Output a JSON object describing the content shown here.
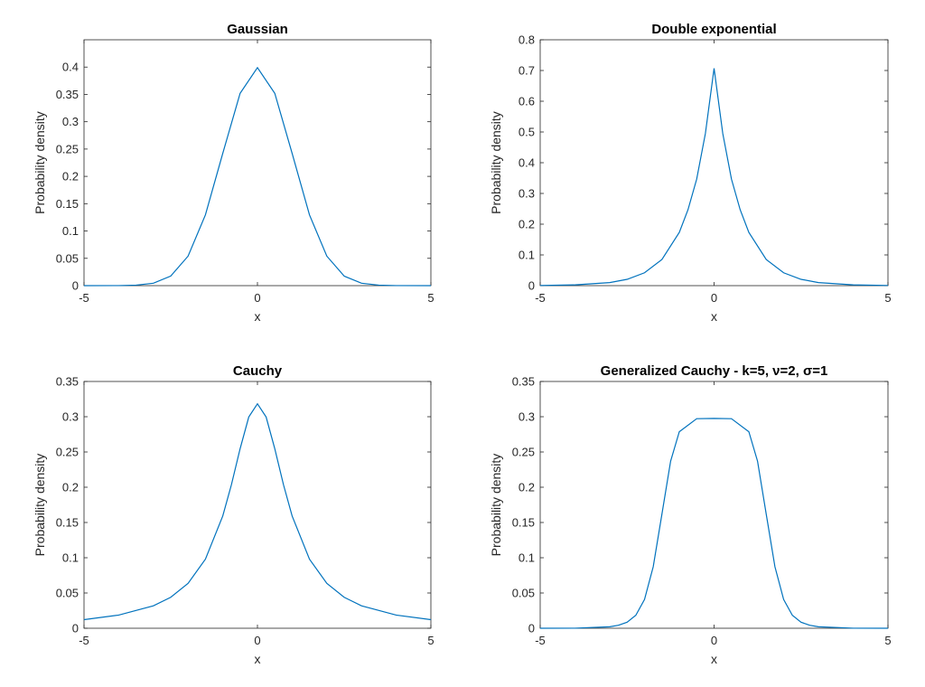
{
  "colors": {
    "series": "#0072BD",
    "axis": "#262626"
  },
  "chart_data": [
    {
      "type": "line",
      "title": "Gaussian",
      "xlabel": "x",
      "ylabel": "Probability density",
      "xlim": [
        -5,
        5
      ],
      "ylim": [
        0,
        0.45
      ],
      "xticks": [
        "-5",
        "0",
        "5"
      ],
      "yticks": [
        "0",
        "0.05",
        "0.1",
        "0.15",
        "0.2",
        "0.25",
        "0.3",
        "0.35",
        "0.4"
      ],
      "grid": false,
      "series": [
        {
          "x": [
            -5,
            -4,
            -3.5,
            -3,
            -2.5,
            -2,
            -1.5,
            -1,
            -0.5,
            0,
            0.5,
            1,
            1.5,
            2,
            2.5,
            3,
            3.5,
            4,
            5
          ],
          "y": [
            0.0,
            0.0001,
            0.0009,
            0.0044,
            0.0175,
            0.054,
            0.1295,
            0.242,
            0.352,
            0.399,
            0.352,
            0.242,
            0.1295,
            0.054,
            0.0175,
            0.0044,
            0.0009,
            0.0001,
            0.0
          ]
        }
      ]
    },
    {
      "type": "line",
      "title": "Double exponential",
      "xlabel": "x",
      "ylabel": "Probability density",
      "xlim": [
        -5,
        5
      ],
      "ylim": [
        0,
        0.8
      ],
      "xticks": [
        "-5",
        "0",
        "5"
      ],
      "yticks": [
        "0",
        "0.1",
        "0.2",
        "0.3",
        "0.4",
        "0.5",
        "0.6",
        "0.7",
        "0.8"
      ],
      "grid": false,
      "series": [
        {
          "x": [
            -5,
            -4,
            -3,
            -2.5,
            -2,
            -1.5,
            -1,
            -0.75,
            -0.5,
            -0.25,
            0,
            0.25,
            0.5,
            0.75,
            1,
            1.5,
            2,
            2.5,
            3,
            4,
            5
          ],
          "y": [
            0.0006,
            0.0025,
            0.01,
            0.0206,
            0.0419,
            0.0851,
            0.1732,
            0.2471,
            0.3467,
            0.495,
            0.7071,
            0.495,
            0.3467,
            0.2471,
            0.1732,
            0.0851,
            0.0419,
            0.0206,
            0.01,
            0.0025,
            0.0006
          ]
        }
      ]
    },
    {
      "type": "line",
      "title": "Cauchy",
      "xlabel": "x",
      "ylabel": "Probability density",
      "xlim": [
        -5,
        5
      ],
      "ylim": [
        0,
        0.35
      ],
      "xticks": [
        "-5",
        "0",
        "5"
      ],
      "yticks": [
        "0",
        "0.05",
        "0.1",
        "0.15",
        "0.2",
        "0.25",
        "0.3",
        "0.35"
      ],
      "grid": false,
      "series": [
        {
          "x": [
            -5,
            -4,
            -3,
            -2.5,
            -2,
            -1.5,
            -1,
            -0.75,
            -0.5,
            -0.25,
            0,
            0.25,
            0.5,
            0.75,
            1,
            1.5,
            2,
            2.5,
            3,
            4,
            5
          ],
          "y": [
            0.0122,
            0.0187,
            0.0318,
            0.0439,
            0.0637,
            0.0979,
            0.1592,
            0.2037,
            0.2546,
            0.2996,
            0.3183,
            0.2996,
            0.2546,
            0.2037,
            0.1592,
            0.0979,
            0.0637,
            0.0439,
            0.0318,
            0.0187,
            0.0122
          ]
        }
      ]
    },
    {
      "type": "line",
      "title": "Generalized Cauchy - k=5, ν=2, σ=1",
      "xlabel": "x",
      "ylabel": "Probability density",
      "xlim": [
        -5,
        5
      ],
      "ylim": [
        0,
        0.35
      ],
      "xticks": [
        "-5",
        "0",
        "5"
      ],
      "yticks": [
        "0",
        "0.05",
        "0.1",
        "0.15",
        "0.2",
        "0.25",
        "0.3",
        "0.35"
      ],
      "grid": false,
      "series": [
        {
          "x": [
            -5,
            -4,
            -3,
            -2.75,
            -2.5,
            -2.25,
            -2,
            -1.75,
            -1.5,
            -1.25,
            -1,
            -0.5,
            0,
            0.5,
            1,
            1.25,
            1.5,
            1.75,
            2,
            2.25,
            2.5,
            2.75,
            3,
            4,
            5
          ],
          "y": [
            0.0,
            0.0001,
            0.0021,
            0.0042,
            0.0086,
            0.0184,
            0.0408,
            0.0872,
            0.1617,
            0.2369,
            0.2787,
            0.2972,
            0.2976,
            0.2972,
            0.2787,
            0.2369,
            0.1617,
            0.0872,
            0.0408,
            0.0184,
            0.0086,
            0.0042,
            0.0021,
            0.0001,
            0.0
          ]
        }
      ]
    }
  ]
}
